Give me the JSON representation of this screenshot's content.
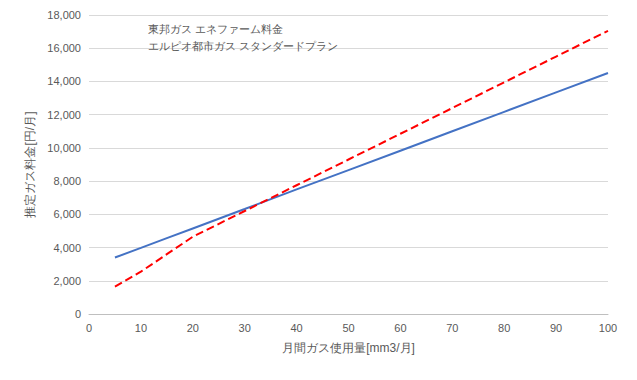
{
  "chart_data": {
    "type": "line",
    "xlabel": "月間ガス使用量[mm3/月]",
    "ylabel": "推定ガス料金[円/月]",
    "x": [
      5,
      10,
      15,
      20,
      30,
      40,
      50,
      60,
      70,
      80,
      90,
      100
    ],
    "series": [
      {
        "name": "東邦ガス エネファーム料金",
        "color": "#4472c4",
        "line_style": "solid",
        "values": [
          3400,
          3980,
          4570,
          5150,
          6320,
          7500,
          8660,
          9830,
          11000,
          12170,
          13340,
          14510
        ]
      },
      {
        "name": "エルピオ都市ガス スタンダードプラン",
        "color": "#ff0000",
        "line_style": "dashed",
        "values": [
          1650,
          2550,
          3600,
          4650,
          6200,
          7750,
          9300,
          10850,
          12400,
          13950,
          15500,
          17050
        ]
      }
    ],
    "xlim": [
      0,
      100
    ],
    "xticks": [
      0,
      10,
      20,
      30,
      40,
      50,
      60,
      70,
      80,
      90,
      100
    ],
    "ylim": [
      0,
      18000
    ],
    "yticks": [
      0,
      {
        "value": 2000,
        "label": "2,000"
      },
      {
        "value": 4000,
        "label": "4,000"
      },
      {
        "value": 6000,
        "label": "6,000"
      },
      {
        "value": 8000,
        "label": "8,000"
      },
      {
        "value": 10000,
        "label": "10,000"
      },
      {
        "value": 12000,
        "label": "12,000"
      },
      {
        "value": 14000,
        "label": "14,000"
      },
      {
        "value": 16000,
        "label": "16,000"
      },
      {
        "value": 18000,
        "label": "18,000"
      }
    ],
    "grid": true,
    "legend": "upper left"
  }
}
